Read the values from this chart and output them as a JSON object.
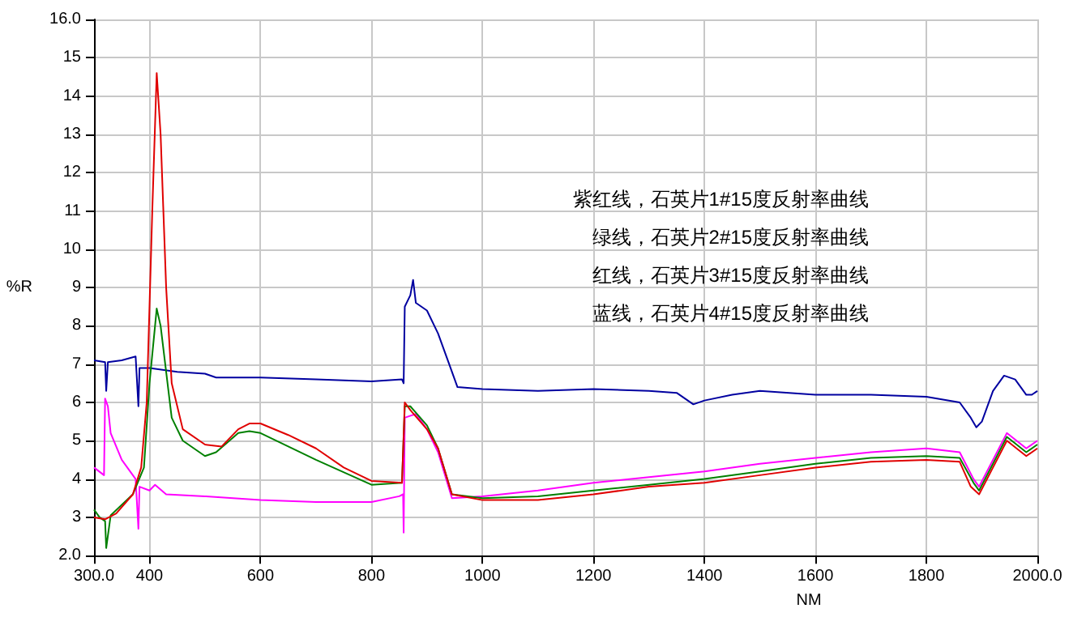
{
  "chart_data": {
    "type": "line",
    "xlabel": "NM",
    "ylabel": "%R",
    "xlim": [
      300,
      2000
    ],
    "ylim": [
      2,
      16
    ],
    "xticks": [
      {
        "value": 300,
        "label": "300.0"
      },
      400,
      600,
      800,
      1000,
      1200,
      1400,
      1600,
      1800,
      {
        "value": 2000,
        "label": "2000.0"
      }
    ],
    "yticks": [
      {
        "value": 2,
        "label": "2.0"
      },
      3,
      4,
      5,
      6,
      7,
      8,
      9,
      10,
      11,
      12,
      13,
      14,
      15,
      {
        "value": 16,
        "label": "16.0"
      }
    ],
    "grid": true,
    "marker": "none",
    "line_style": "solid",
    "annotations": [
      "紫红线，石英片1#15度反射率曲线",
      "绿线，石英片2#15度反射率曲线",
      "红线，石英片3#15度反射率曲线",
      "蓝线，石英片4#15度反射率曲线"
    ],
    "series": [
      {
        "color": "#0000a0",
        "x": [
          300,
          320,
          322,
          325,
          350,
          375,
          380,
          382,
          400,
          450,
          500,
          520,
          600,
          700,
          800,
          855,
          858,
          860,
          870,
          875,
          880,
          900,
          920,
          940,
          955,
          1000,
          1100,
          1200,
          1300,
          1350,
          1380,
          1400,
          1450,
          1500,
          1600,
          1700,
          1800,
          1860,
          1880,
          1890,
          1900,
          1920,
          1940,
          1960,
          1980,
          1990,
          2000
        ],
        "values": [
          7.1,
          7.05,
          6.3,
          7.05,
          7.1,
          7.2,
          5.9,
          6.9,
          6.9,
          6.8,
          6.75,
          6.65,
          6.65,
          6.6,
          6.55,
          6.6,
          6.5,
          8.5,
          8.8,
          9.2,
          8.6,
          8.4,
          7.8,
          7.0,
          6.4,
          6.35,
          6.3,
          6.35,
          6.3,
          6.25,
          5.95,
          6.05,
          6.2,
          6.3,
          6.2,
          6.2,
          6.15,
          6.0,
          5.6,
          5.35,
          5.5,
          6.3,
          6.7,
          6.6,
          6.2,
          6.2,
          6.3
        ]
      },
      {
        "color": "#ff00ff",
        "x": [
          300,
          318,
          320,
          325,
          330,
          350,
          375,
          380,
          382,
          400,
          410,
          430,
          500,
          600,
          700,
          800,
          850,
          857,
          858,
          860,
          880,
          900,
          920,
          945,
          1000,
          1100,
          1200,
          1300,
          1400,
          1500,
          1600,
          1700,
          1800,
          1860,
          1885,
          1895,
          1920,
          1945,
          1980,
          2000
        ],
        "values": [
          4.3,
          4.1,
          6.1,
          5.9,
          5.2,
          4.5,
          4.0,
          2.7,
          3.8,
          3.7,
          3.85,
          3.6,
          3.55,
          3.45,
          3.4,
          3.4,
          3.55,
          3.6,
          2.6,
          5.6,
          5.7,
          5.3,
          4.7,
          3.5,
          3.55,
          3.7,
          3.9,
          4.05,
          4.2,
          4.4,
          4.55,
          4.7,
          4.8,
          4.7,
          4.0,
          3.8,
          4.5,
          5.2,
          4.8,
          5.0
        ]
      },
      {
        "color": "#008000",
        "x": [
          300,
          310,
          320,
          322,
          330,
          370,
          390,
          400,
          413,
          420,
          440,
          460,
          500,
          520,
          560,
          580,
          600,
          700,
          800,
          855,
          860,
          870,
          900,
          920,
          945,
          1000,
          1100,
          1200,
          1300,
          1400,
          1500,
          1600,
          1700,
          1800,
          1860,
          1885,
          1895,
          1920,
          1945,
          1980,
          2000
        ],
        "values": [
          3.2,
          3.0,
          2.9,
          2.2,
          3.05,
          3.6,
          4.3,
          6.5,
          8.45,
          8.0,
          5.6,
          5.0,
          4.6,
          4.7,
          5.2,
          5.25,
          5.2,
          4.5,
          3.85,
          3.9,
          5.9,
          5.9,
          5.4,
          4.8,
          3.6,
          3.5,
          3.55,
          3.7,
          3.85,
          4.0,
          4.2,
          4.4,
          4.55,
          4.6,
          4.55,
          3.9,
          3.7,
          4.4,
          5.1,
          4.7,
          4.9
        ]
      },
      {
        "color": "#e00000",
        "x": [
          300,
          320,
          340,
          370,
          385,
          395,
          405,
          413,
          420,
          430,
          440,
          460,
          500,
          530,
          560,
          580,
          600,
          650,
          700,
          750,
          800,
          855,
          860,
          870,
          900,
          920,
          945,
          1000,
          1100,
          1200,
          1300,
          1400,
          1500,
          1600,
          1700,
          1800,
          1860,
          1880,
          1895,
          1920,
          1945,
          1980,
          2000
        ],
        "values": [
          3.0,
          2.95,
          3.1,
          3.6,
          4.3,
          6.0,
          11.0,
          14.6,
          13.0,
          9.0,
          6.5,
          5.3,
          4.9,
          4.85,
          5.3,
          5.45,
          5.45,
          5.15,
          4.8,
          4.3,
          3.95,
          3.9,
          6.0,
          5.8,
          5.3,
          4.8,
          3.6,
          3.45,
          3.45,
          3.6,
          3.8,
          3.9,
          4.1,
          4.3,
          4.45,
          4.5,
          4.45,
          3.8,
          3.6,
          4.3,
          5.0,
          4.6,
          4.8
        ]
      }
    ]
  }
}
